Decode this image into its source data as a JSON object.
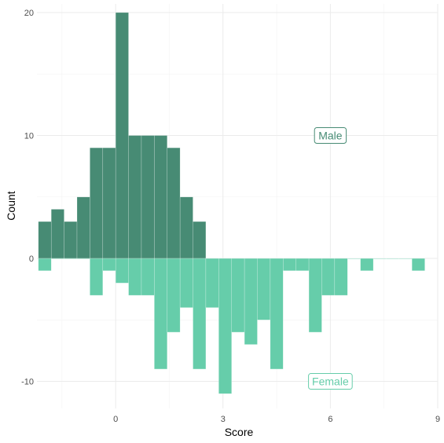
{
  "chart_data": {
    "type": "bar",
    "xlabel": "Score",
    "ylabel": "Count",
    "xlim": [
      -2.2,
      9.0
    ],
    "ylim": [
      -12.2,
      20.7
    ],
    "x_ticks": [
      0,
      3,
      6,
      9
    ],
    "y_ticks": [
      -10,
      0,
      10,
      20
    ],
    "bin_width": 0.36,
    "series": [
      {
        "label": "Male",
        "color": "#478b74",
        "direction": "up",
        "bins": [
          {
            "x": -2.16,
            "count": 3
          },
          {
            "x": -1.8,
            "count": 4
          },
          {
            "x": -1.44,
            "count": 3
          },
          {
            "x": -1.08,
            "count": 5
          },
          {
            "x": -0.72,
            "count": 9
          },
          {
            "x": -0.36,
            "count": 9
          },
          {
            "x": 0.0,
            "count": 20
          },
          {
            "x": 0.36,
            "count": 10
          },
          {
            "x": 0.72,
            "count": 10
          },
          {
            "x": 1.08,
            "count": 10
          },
          {
            "x": 1.44,
            "count": 9
          },
          {
            "x": 1.8,
            "count": 5
          },
          {
            "x": 2.16,
            "count": 3
          }
        ]
      },
      {
        "label": "Female",
        "color": "#66cdaa",
        "direction": "down",
        "bins": [
          {
            "x": -2.16,
            "count": 1
          },
          {
            "x": -1.8,
            "count": 0
          },
          {
            "x": -1.44,
            "count": 0
          },
          {
            "x": -1.08,
            "count": 0
          },
          {
            "x": -0.72,
            "count": 3
          },
          {
            "x": -0.36,
            "count": 1
          },
          {
            "x": 0.0,
            "count": 2
          },
          {
            "x": 0.36,
            "count": 3
          },
          {
            "x": 0.72,
            "count": 3
          },
          {
            "x": 1.08,
            "count": 9
          },
          {
            "x": 1.44,
            "count": 6
          },
          {
            "x": 1.8,
            "count": 4
          },
          {
            "x": 2.16,
            "count": 9
          },
          {
            "x": 2.52,
            "count": 4
          },
          {
            "x": 2.88,
            "count": 11
          },
          {
            "x": 3.24,
            "count": 6
          },
          {
            "x": 3.6,
            "count": 7
          },
          {
            "x": 3.96,
            "count": 5
          },
          {
            "x": 4.32,
            "count": 9
          },
          {
            "x": 4.68,
            "count": 1
          },
          {
            "x": 5.04,
            "count": 1
          },
          {
            "x": 5.4,
            "count": 6
          },
          {
            "x": 5.76,
            "count": 3
          },
          {
            "x": 6.12,
            "count": 3
          },
          {
            "x": 6.48,
            "count": 0
          },
          {
            "x": 6.84,
            "count": 1
          },
          {
            "x": 7.2,
            "count": 0
          },
          {
            "x": 7.56,
            "count": 0
          },
          {
            "x": 7.92,
            "count": 0
          },
          {
            "x": 8.28,
            "count": 1
          }
        ]
      }
    ],
    "annotations": [
      {
        "text": "Male",
        "x": 6.0,
        "y": 10,
        "color": "#478b74"
      },
      {
        "text": "Female",
        "x": 6.0,
        "y": -10,
        "color": "#66cdaa"
      }
    ],
    "grid": true
  }
}
